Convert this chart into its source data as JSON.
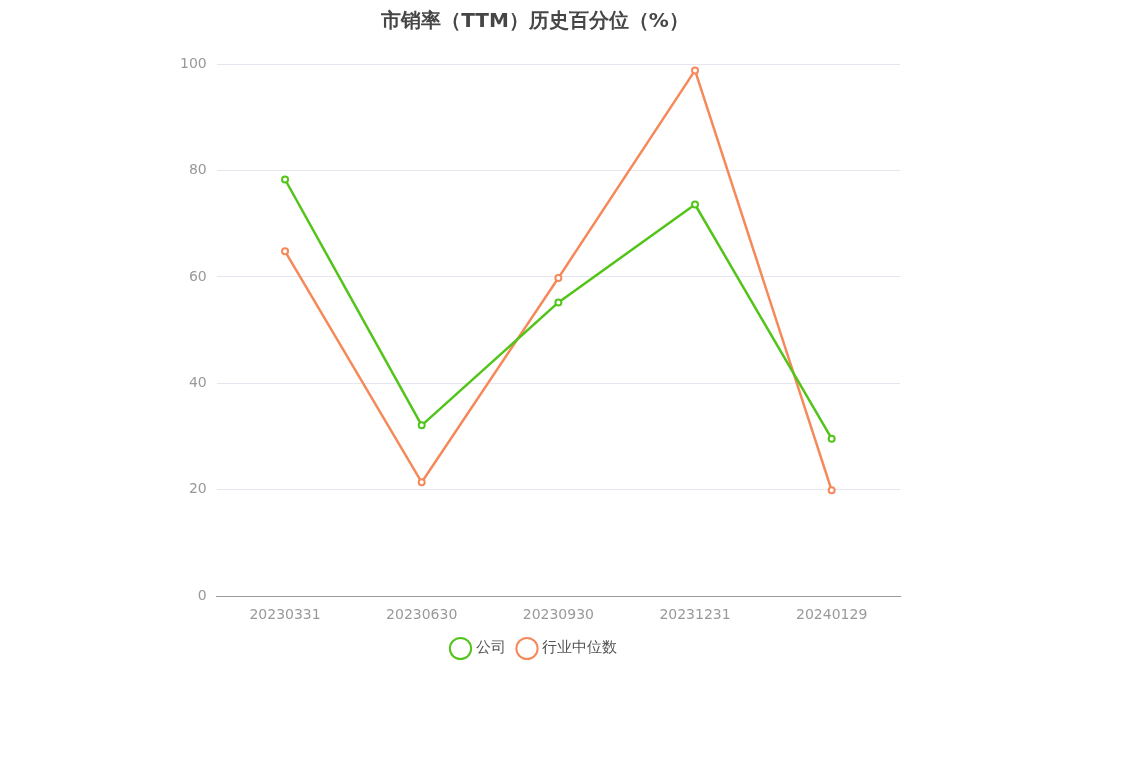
{
  "chart_data": {
    "type": "line",
    "title": "市销率（TTM）历史百分位（%）",
    "categories": [
      "20230331",
      "20230630",
      "20230930",
      "20231231",
      "20240129"
    ],
    "series": [
      {
        "name": "公司",
        "color": "#52c41a",
        "values": [
          78.3,
          32.1,
          55.2,
          73.6,
          29.6
        ]
      },
      {
        "name": "行业中位数",
        "color": "#f5895a",
        "values": [
          64.8,
          21.4,
          59.8,
          98.8,
          19.9
        ]
      }
    ],
    "ylim": [
      0,
      100
    ],
    "yticks": [
      0,
      20,
      40,
      60,
      80,
      100
    ],
    "grid": "y",
    "legend": "bottom",
    "marker": "circle",
    "line_style": "solid"
  }
}
